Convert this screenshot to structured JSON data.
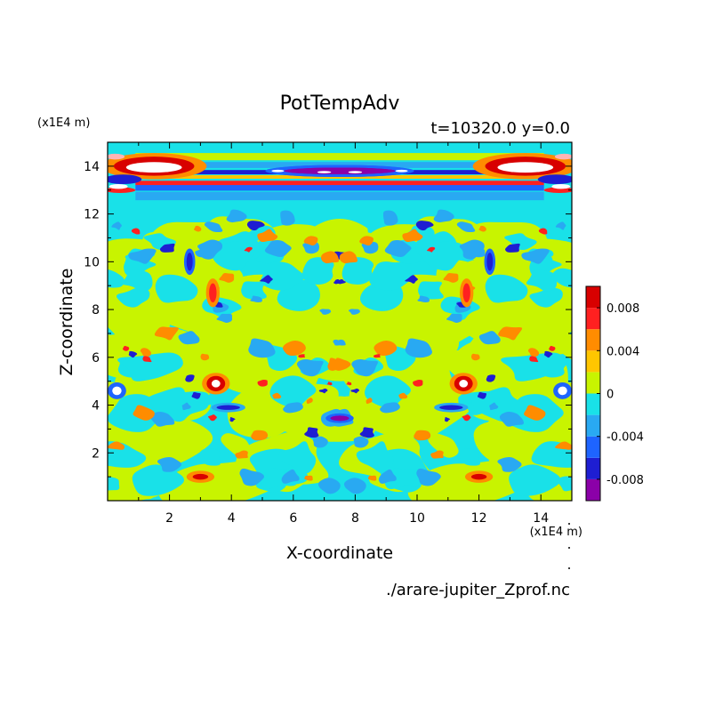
{
  "chart_data": {
    "type": "heatmap",
    "title": "PotTempAdv",
    "subtitle": "t=10320.0 y=0.0",
    "xlabel": "X-coordinate",
    "ylabel": "Z-coordinate",
    "x_unit": "(x1E4 m)",
    "y_unit": "(x1E4 m)",
    "xlim": [
      0,
      15
    ],
    "ylim": [
      0,
      15
    ],
    "x_ticks": [
      "2",
      "4",
      "6",
      "8",
      "10",
      "12",
      "14"
    ],
    "y_ticks": [
      "2",
      "4",
      "6",
      "8",
      "10",
      "12",
      "14"
    ],
    "colorbar": {
      "levels": [
        -0.01,
        -0.008,
        -0.006,
        -0.004,
        -0.002,
        0,
        0.002,
        0.004,
        0.006,
        0.008,
        0.01
      ],
      "colors": [
        "#8B00A8",
        "#1E1ED2",
        "#1E64FF",
        "#29A9F2",
        "#19E1E8",
        "#C8F400",
        "#FFC600",
        "#FF8C00",
        "#FF2020",
        "#D80000",
        "#FFB4B4"
      ],
      "tick_labels": [
        "0.008",
        "0.004",
        "0",
        "-0.004",
        "-0.008"
      ],
      "tick_values": [
        0.008,
        0.004,
        0,
        -0.004,
        -0.008
      ]
    },
    "field": {
      "background_level": "0 to 0.002",
      "features": [
        {
          "x": 7.5,
          "z": 13.7,
          "value": -0.009,
          "note": "dark blue band near top"
        },
        {
          "x": 1.5,
          "z": 14.0,
          "value": 0.01,
          "note": "strong positive anomaly top-left"
        },
        {
          "x": 13.5,
          "z": 14.0,
          "value": 0.01,
          "note": "strong positive anomaly top-right"
        },
        {
          "x": 3.5,
          "z": 4.9,
          "value": 0.01,
          "note": "positive eddy left"
        },
        {
          "x": 11.5,
          "z": 4.9,
          "value": 0.01,
          "note": "positive eddy right"
        },
        {
          "x": 3.8,
          "z": 3.9,
          "value": -0.009,
          "note": "negative eddy left"
        },
        {
          "x": 11.2,
          "z": 3.9,
          "value": -0.009,
          "note": "negative eddy right"
        },
        {
          "x": 7.5,
          "z": 3.5,
          "value": -0.008,
          "note": "negative eddy centre"
        }
      ]
    }
  },
  "footer": {
    "filename": "./arare-jupiter_Zprof.nc"
  }
}
